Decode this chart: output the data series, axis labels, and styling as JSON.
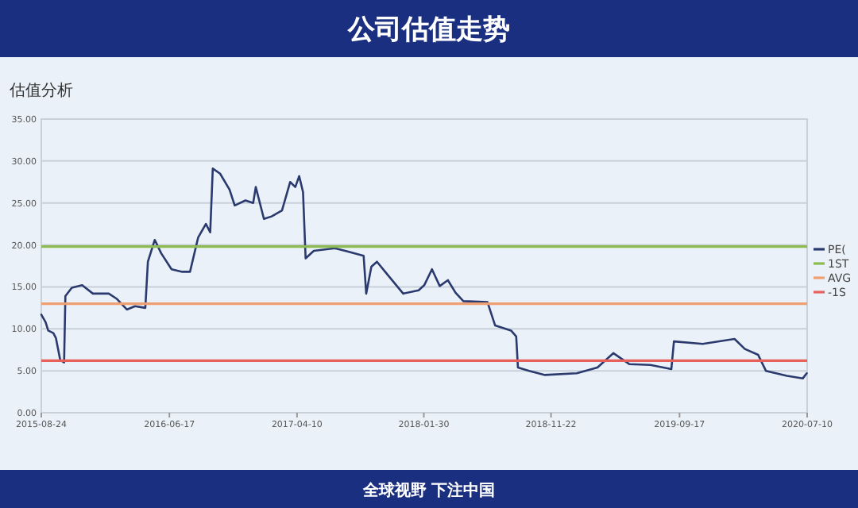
{
  "chart_data": {
    "type": "line",
    "title": "公司估值走势",
    "subtitle": "估值分析",
    "x": [
      "2015-08-24",
      "2015-09-03",
      "2015-09-09",
      "2015-09-21",
      "2015-09-27",
      "2015-10-07",
      "2015-10-16",
      "2015-10-19",
      "2015-11-03",
      "2015-11-27",
      "2015-12-22",
      "2016-01-28",
      "2016-02-15",
      "2016-03-10",
      "2016-03-29",
      "2016-04-22",
      "2016-04-28",
      "2016-05-14",
      "2016-05-29",
      "2016-06-22",
      "2016-07-17",
      "2016-08-04",
      "2016-08-23",
      "2016-09-10",
      "2016-09-20",
      "2016-09-26",
      "2016-10-13",
      "2016-11-04",
      "2016-11-16",
      "2016-12-11",
      "2016-12-29",
      "2017-01-04",
      "2017-01-23",
      "2017-02-10",
      "2017-03-06",
      "2017-03-25",
      "2017-04-06",
      "2017-04-15",
      "2017-04-24",
      "2017-04-30",
      "2017-05-19",
      "2017-07-07",
      "2017-07-31",
      "2017-09-12",
      "2017-09-18",
      "2017-09-30",
      "2017-10-13",
      "2017-11-06",
      "2017-12-13",
      "2018-01-18",
      "2018-01-31",
      "2018-02-18",
      "2018-03-08",
      "2018-03-27",
      "2018-04-14",
      "2018-05-02",
      "2018-06-27",
      "2018-07-15",
      "2018-08-21",
      "2018-09-02",
      "2018-09-06",
      "2018-10-02",
      "2018-11-08",
      "2019-01-21",
      "2019-03-10",
      "2019-04-16",
      "2019-05-23",
      "2019-07-11",
      "2019-08-29",
      "2019-09-04",
      "2019-11-10",
      "2020-01-23",
      "2020-02-16",
      "2020-03-18",
      "2020-04-05",
      "2020-05-24",
      "2020-06-30",
      "2020-07-09"
    ],
    "series": [
      {
        "name": "PE(",
        "color": "#2b3a6e",
        "values": [
          11.7,
          10.8,
          9.8,
          9.5,
          8.9,
          6.3,
          6.0,
          13.9,
          14.9,
          15.2,
          14.2,
          14.2,
          13.6,
          12.3,
          12.7,
          12.5,
          18.0,
          20.6,
          19.0,
          17.1,
          16.8,
          16.8,
          20.9,
          22.5,
          21.5,
          29.1,
          28.5,
          26.6,
          24.7,
          25.3,
          25.0,
          26.9,
          23.1,
          23.4,
          24.1,
          27.5,
          26.9,
          28.2,
          26.3,
          18.4,
          19.3,
          19.6,
          19.3,
          18.7,
          14.2,
          17.4,
          18.0,
          16.5,
          14.2,
          14.6,
          15.2,
          17.1,
          15.1,
          15.8,
          14.3,
          13.3,
          13.2,
          10.4,
          9.8,
          9.1,
          5.4,
          5.0,
          4.5,
          4.7,
          5.4,
          7.1,
          5.8,
          5.7,
          5.2,
          8.5,
          8.2,
          8.8,
          7.6,
          6.9,
          5.0,
          4.4,
          4.1,
          4.7
        ]
      }
    ],
    "ref_lines": [
      {
        "axis": "y",
        "value": 19.8,
        "label": "1ST",
        "color": "#8dbb50"
      },
      {
        "axis": "y",
        "value": 13.0,
        "label": "AVG",
        "color": "#f0a070"
      },
      {
        "axis": "y",
        "value": 6.2,
        "label": "-1S",
        "color": "#e8605a"
      }
    ],
    "xlim": [
      "2015-08-24",
      "2020-07-10"
    ],
    "xticks": [
      "2015-08-24",
      "2016-06-17",
      "2017-04-10",
      "2018-01-30",
      "2018-11-22",
      "2019-09-17",
      "2020-07-10"
    ],
    "ylim": [
      0,
      35
    ],
    "yticks": [
      {
        "value": 0,
        "label": "0.00"
      },
      {
        "value": 5,
        "label": "5.00"
      },
      {
        "value": 10,
        "label": "10.00"
      },
      {
        "value": 15,
        "label": "15.00"
      },
      {
        "value": 20,
        "label": "20.00"
      },
      {
        "value": 25,
        "label": "25.00"
      },
      {
        "value": 30,
        "label": "30.00"
      },
      {
        "value": 35,
        "label": "35.00"
      }
    ],
    "grid": "y",
    "legend": "right",
    "annotations": [
      "全球视野 下注中国"
    ]
  }
}
